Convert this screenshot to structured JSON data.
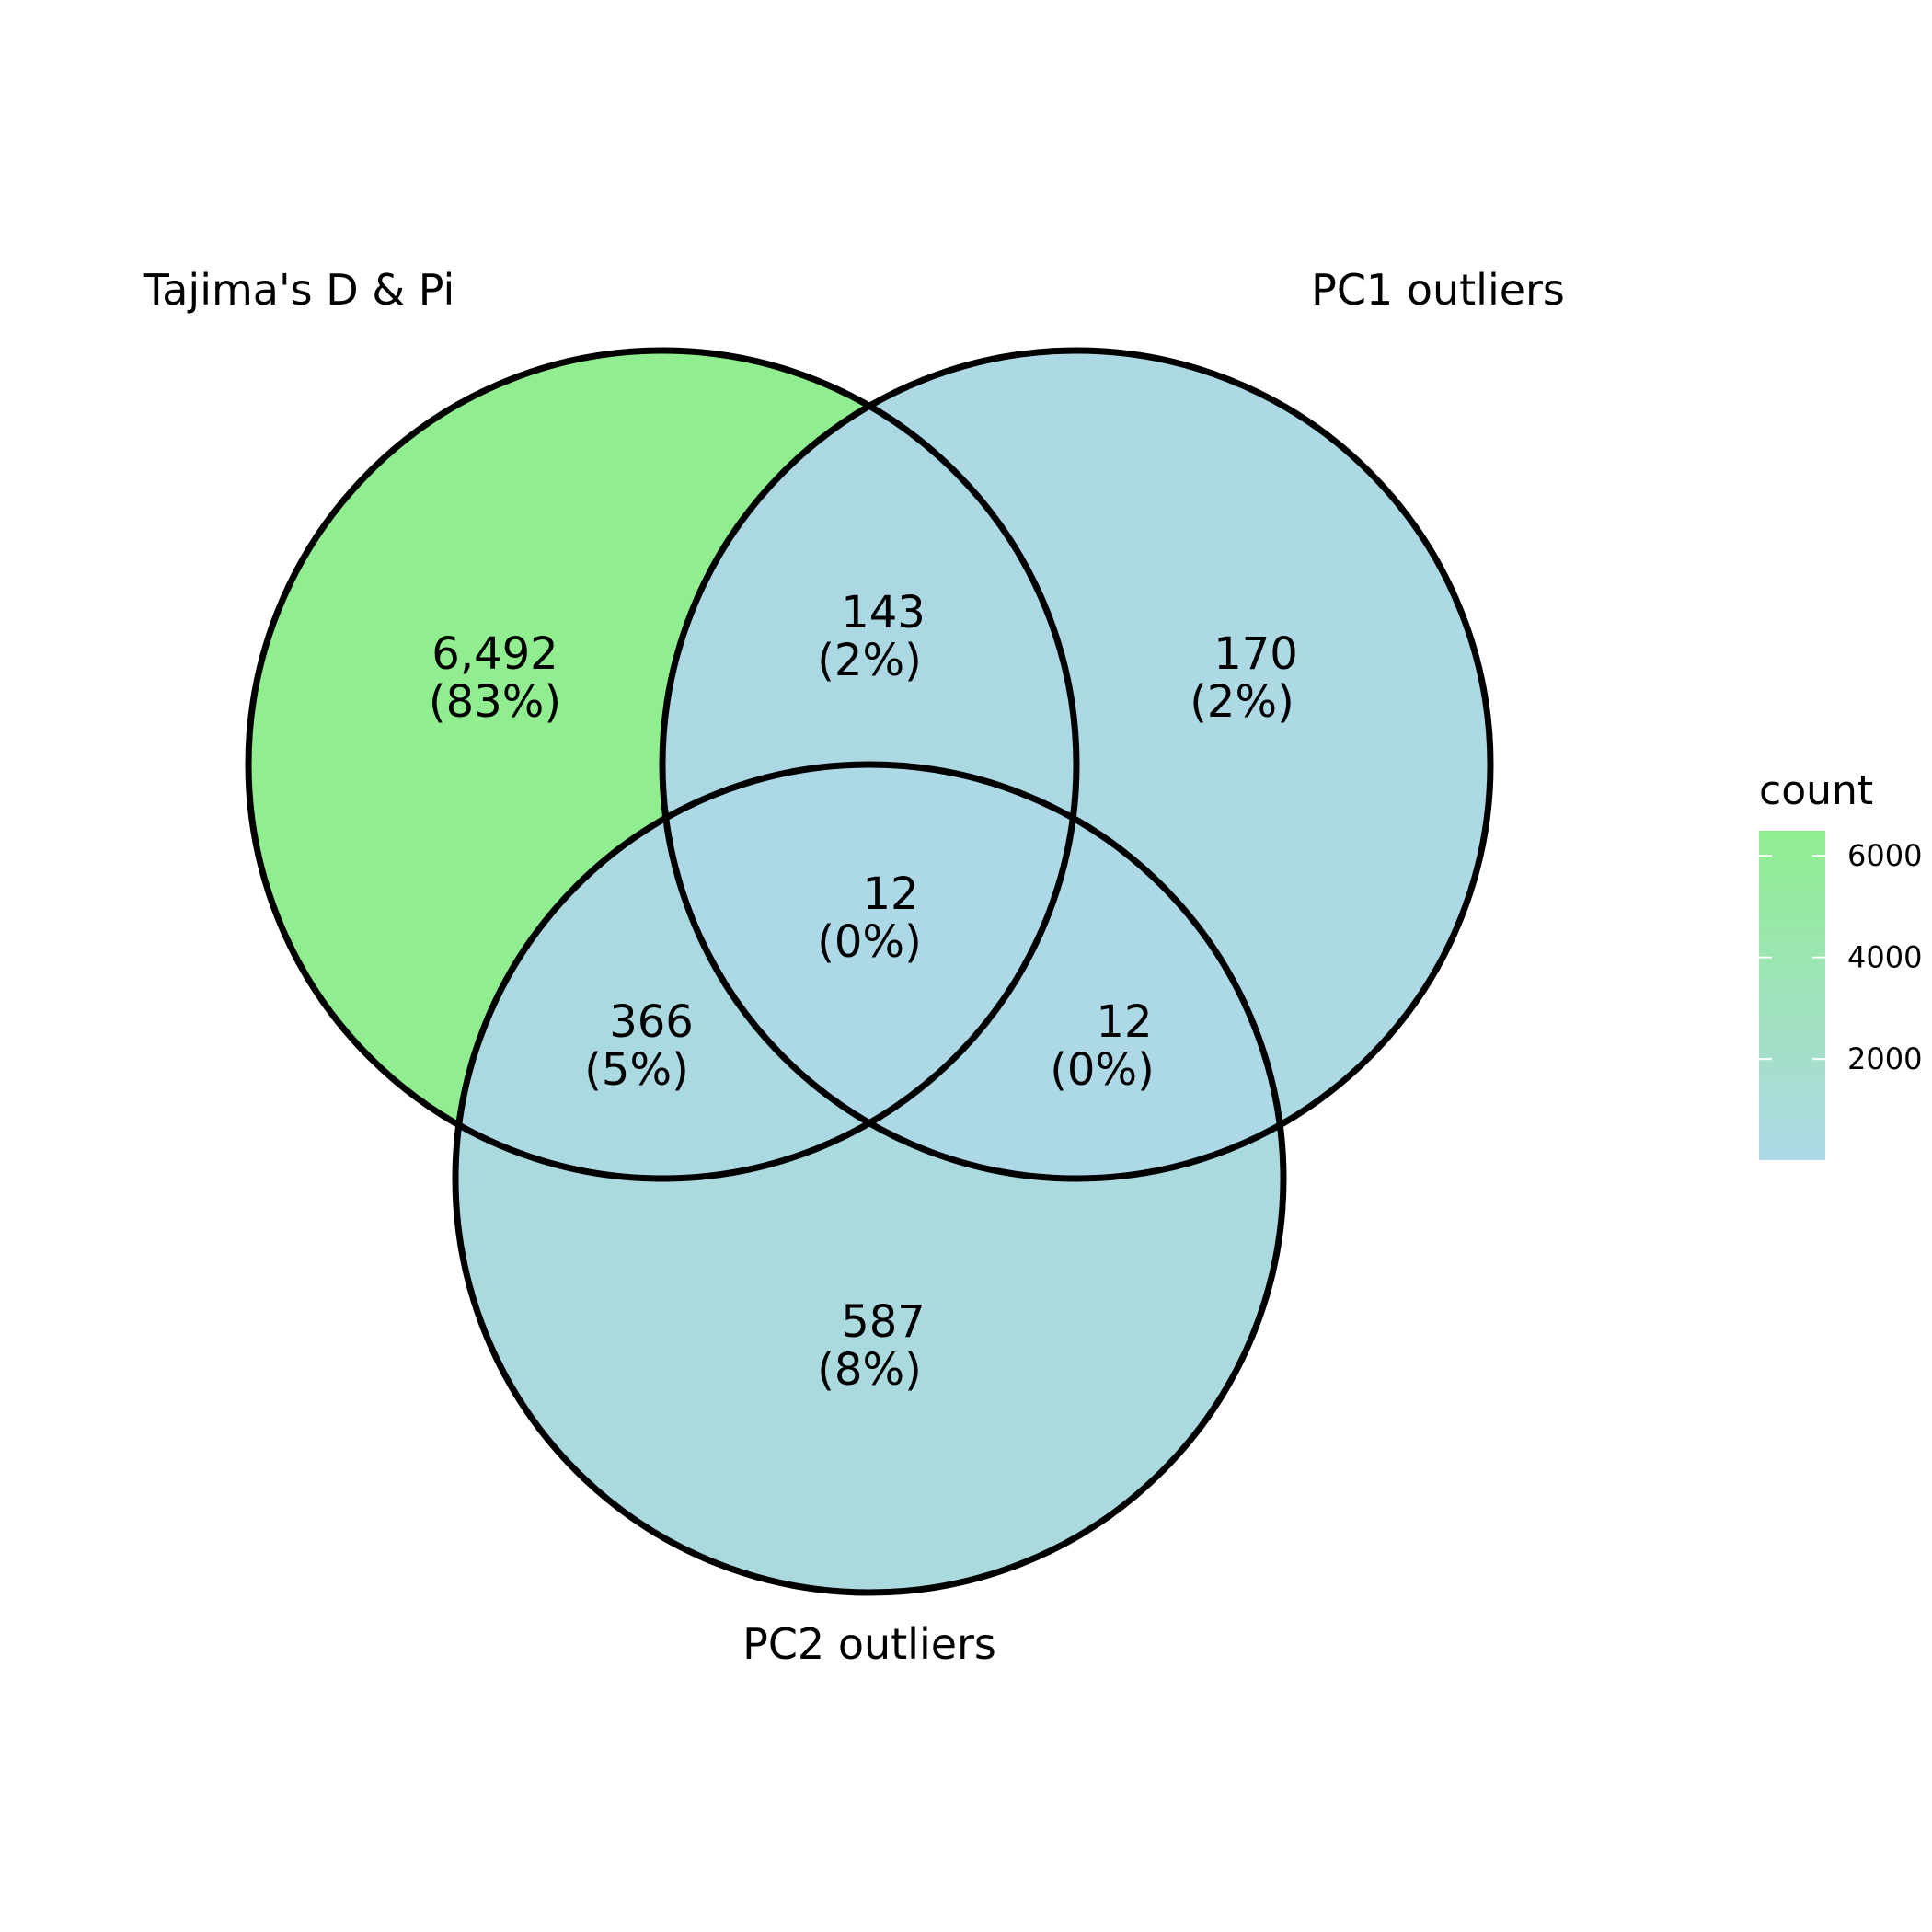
{
  "sets": [
    {
      "id": "A",
      "name": "Tajima's D & Pi"
    },
    {
      "id": "B",
      "name": "PC1 outliers"
    },
    {
      "id": "C",
      "name": "PC2 outliers"
    }
  ],
  "regions": [
    {
      "id": "A",
      "count": "6,492",
      "value": 6492,
      "percent": "(83%)"
    },
    {
      "id": "B",
      "count": "170",
      "value": 170,
      "percent": "(2%)"
    },
    {
      "id": "C",
      "count": "587",
      "value": 587,
      "percent": "(8%)"
    },
    {
      "id": "AB",
      "count": "143",
      "value": 143,
      "percent": "(2%)"
    },
    {
      "id": "AC",
      "count": "366",
      "value": 366,
      "percent": "(5%)"
    },
    {
      "id": "BC",
      "count": "12",
      "value": 12,
      "percent": "(0%)"
    },
    {
      "id": "ABC",
      "count": "12",
      "value": 12,
      "percent": "(0%)"
    }
  ],
  "legend": {
    "title": "count",
    "min": 12,
    "max": 6492,
    "ticks": [
      2000,
      4000,
      6000
    ],
    "low_color": "#add8e6",
    "high_color": "#90ee90"
  },
  "style": {
    "outline_color": "#000000"
  }
}
